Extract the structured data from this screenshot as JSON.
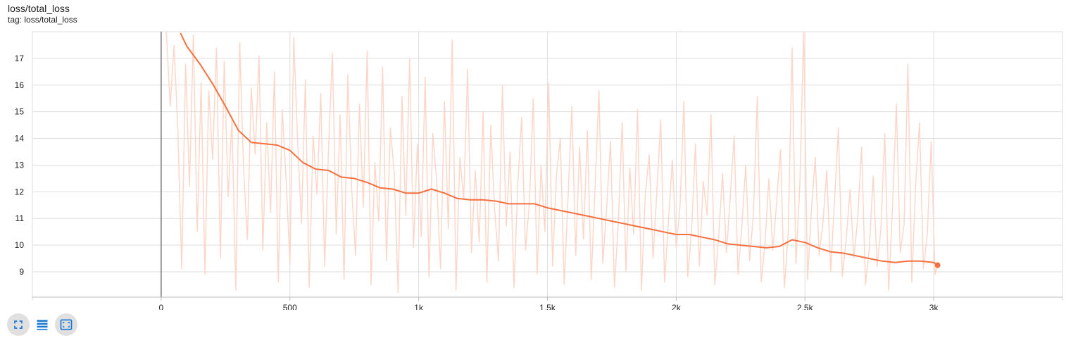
{
  "header": {
    "title": "loss/total_loss",
    "tag": "tag: loss/total_loss"
  },
  "toolbar": {
    "buttons": [
      {
        "icon": "fullscreen-icon"
      },
      {
        "icon": "data-table-icon"
      },
      {
        "icon": "fit-domain-icon"
      }
    ]
  },
  "colors": {
    "smoothed": "#f4703f",
    "raw": "#fcd7c9",
    "grid": "#dddddd",
    "accent": "#1976d2"
  },
  "chart_data": {
    "type": "line",
    "title": "loss/total_loss",
    "xlabel": "",
    "ylabel": "",
    "xlim": [
      -500,
      3500
    ],
    "ylim": [
      8.05,
      18.0
    ],
    "x_ticks": [
      0,
      500,
      1000,
      1500,
      2000,
      2500,
      3000
    ],
    "x_tick_labels": [
      "0",
      "500",
      "1k",
      "1.5k",
      "2k",
      "2.5k",
      "3k"
    ],
    "y_ticks": [
      9,
      10,
      11,
      12,
      13,
      14,
      15,
      16,
      17
    ],
    "y_tick_labels": [
      "9",
      "10",
      "11",
      "12",
      "13",
      "14",
      "15",
      "16",
      "17"
    ],
    "grid": true,
    "series": [
      {
        "role": "smoothed",
        "x": [
          75,
          100,
          150,
          200,
          250,
          300,
          350,
          400,
          450,
          500,
          550,
          600,
          650,
          700,
          750,
          800,
          850,
          900,
          950,
          1000,
          1050,
          1100,
          1150,
          1200,
          1250,
          1300,
          1350,
          1400,
          1450,
          1500,
          1550,
          1600,
          1650,
          1700,
          1750,
          1800,
          1850,
          1900,
          1950,
          2000,
          2050,
          2100,
          2150,
          2200,
          2250,
          2300,
          2350,
          2400,
          2450,
          2500,
          2550,
          2600,
          2650,
          2700,
          2750,
          2800,
          2850,
          2900,
          2950,
          3000,
          3015
        ],
        "y": [
          17.95,
          17.45,
          16.8,
          16.05,
          15.2,
          14.3,
          13.85,
          13.8,
          13.75,
          13.55,
          13.1,
          12.85,
          12.8,
          12.55,
          12.5,
          12.35,
          12.15,
          12.1,
          11.95,
          11.95,
          12.1,
          11.95,
          11.75,
          11.7,
          11.7,
          11.65,
          11.55,
          11.55,
          11.55,
          11.4,
          11.3,
          11.2,
          11.1,
          11.0,
          10.9,
          10.8,
          10.7,
          10.6,
          10.5,
          10.4,
          10.4,
          10.3,
          10.2,
          10.05,
          10.0,
          9.95,
          9.9,
          9.95,
          10.2,
          10.1,
          9.9,
          9.75,
          9.7,
          9.6,
          9.5,
          9.4,
          9.35,
          9.4,
          9.4,
          9.35,
          9.25
        ]
      },
      {
        "role": "raw",
        "x": [
          20,
          35,
          50,
          65,
          80,
          95,
          110,
          125,
          140,
          155,
          170,
          185,
          200,
          215,
          230,
          245,
          260,
          275,
          290,
          305,
          320,
          335,
          350,
          365,
          380,
          395,
          410,
          425,
          440,
          455,
          470,
          485,
          500,
          515,
          530,
          545,
          560,
          575,
          590,
          605,
          620,
          635,
          650,
          665,
          680,
          695,
          710,
          725,
          740,
          755,
          770,
          785,
          800,
          815,
          830,
          845,
          860,
          875,
          890,
          905,
          920,
          935,
          950,
          965,
          980,
          995,
          1010,
          1025,
          1040,
          1055,
          1070,
          1085,
          1100,
          1115,
          1130,
          1145,
          1160,
          1175,
          1190,
          1205,
          1220,
          1235,
          1250,
          1265,
          1280,
          1295,
          1310,
          1325,
          1340,
          1355,
          1370,
          1385,
          1400,
          1415,
          1430,
          1445,
          1460,
          1475,
          1490,
          1505,
          1520,
          1535,
          1550,
          1565,
          1580,
          1595,
          1610,
          1625,
          1640,
          1655,
          1670,
          1685,
          1700,
          1715,
          1730,
          1745,
          1760,
          1775,
          1790,
          1805,
          1820,
          1835,
          1850,
          1865,
          1880,
          1895,
          1910,
          1925,
          1940,
          1955,
          1970,
          1985,
          2000,
          2015,
          2030,
          2045,
          2060,
          2075,
          2090,
          2105,
          2120,
          2135,
          2150,
          2165,
          2180,
          2195,
          2210,
          2225,
          2240,
          2255,
          2270,
          2285,
          2300,
          2315,
          2330,
          2345,
          2360,
          2375,
          2390,
          2405,
          2420,
          2435,
          2450,
          2465,
          2480,
          2495,
          2510,
          2525,
          2540,
          2555,
          2570,
          2585,
          2600,
          2615,
          2630,
          2645,
          2660,
          2675,
          2690,
          2705,
          2720,
          2735,
          2750,
          2765,
          2780,
          2795,
          2810,
          2825,
          2840,
          2855,
          2870,
          2885,
          2900,
          2915,
          2930,
          2945,
          2960,
          2975,
          2990,
          3005,
          3015
        ],
        "y": [
          18.0,
          15.2,
          17.5,
          14.3,
          9.1,
          16.8,
          12.2,
          17.9,
          10.5,
          16.1,
          8.9,
          15.8,
          13.2,
          17.4,
          9.5,
          16.9,
          11.8,
          14.7,
          8.3,
          17.6,
          12.9,
          10.2,
          15.9,
          13.4,
          17.1,
          9.8,
          14.6,
          11.2,
          16.5,
          8.6,
          15.1,
          12.5,
          9.3,
          17.8,
          13.9,
          10.8,
          16.2,
          8.4,
          14.1,
          11.9,
          15.7,
          9.2,
          13.6,
          17.2,
          10.4,
          14.9,
          8.7,
          16.4,
          12.1,
          9.6,
          15.3,
          11.4,
          17.3,
          8.5,
          13.1,
          10.9,
          16.7,
          9.4,
          14.4,
          12.7,
          8.2,
          15.6,
          11.1,
          17.0,
          9.9,
          13.8,
          10.3,
          16.3,
          8.8,
          14.2,
          12.4,
          9.1,
          15.4,
          10.6,
          17.7,
          8.3,
          13.3,
          11.7,
          16.6,
          9.7,
          12.8,
          10.1,
          15.0,
          8.6,
          14.5,
          11.3,
          9.4,
          16.0,
          10.7,
          13.5,
          8.4,
          12.3,
          14.8,
          9.8,
          11.6,
          15.5,
          8.9,
          13.0,
          10.5,
          16.1,
          9.2,
          12.6,
          14.0,
          8.5,
          11.8,
          15.2,
          9.6,
          13.7,
          10.2,
          14.3,
          8.7,
          12.2,
          15.8,
          9.3,
          11.4,
          13.9,
          8.4,
          10.8,
          14.6,
          9.0,
          12.9,
          10.4,
          15.1,
          8.3,
          11.9,
          13.4,
          9.5,
          12.0,
          14.7,
          8.6,
          10.9,
          13.2,
          9.9,
          11.5,
          15.4,
          8.8,
          10.6,
          13.8,
          9.2,
          12.4,
          11.1,
          14.9,
          8.5,
          10.3,
          12.7,
          9.7,
          11.8,
          14.1,
          8.9,
          10.7,
          13.0,
          9.4,
          11.2,
          15.6,
          8.6,
          10.1,
          12.5,
          9.8,
          11.6,
          13.6,
          8.4,
          10.5,
          17.4,
          9.3,
          12.2,
          18.0,
          8.7,
          11.3,
          13.3,
          9.6,
          10.9,
          12.8,
          9.0,
          11.7,
          14.4,
          8.8,
          10.2,
          12.1,
          9.5,
          11.0,
          13.7,
          8.5,
          9.9,
          12.6,
          9.2,
          10.6,
          14.2,
          8.3,
          11.4,
          15.3,
          9.7,
          10.8,
          16.8,
          8.6,
          12.3,
          14.6,
          9.1,
          10.4,
          13.9,
          8.9,
          9.3
        ]
      }
    ]
  }
}
